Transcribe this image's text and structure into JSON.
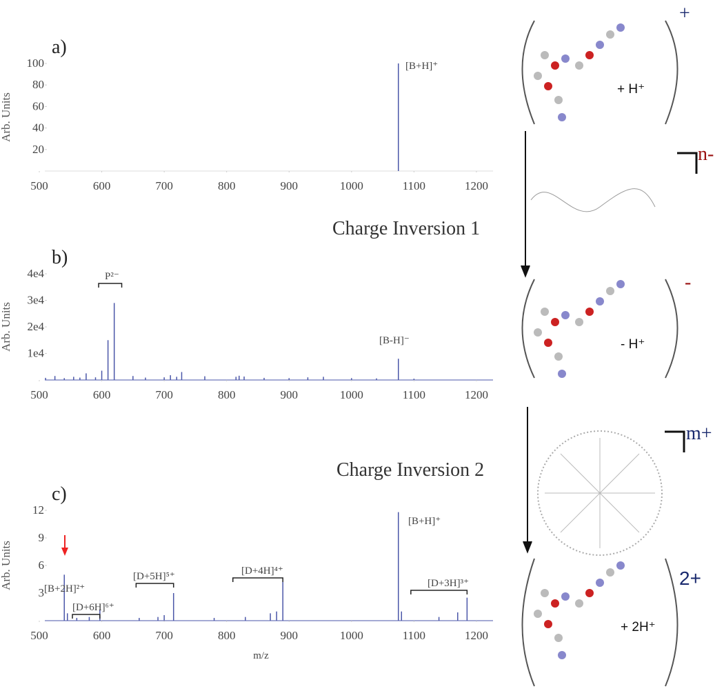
{
  "chart_data": [
    {
      "type": "stem",
      "label": "a)",
      "ylabel": "Arb. Units",
      "color": "#4a56a8",
      "x": [
        1075
      ],
      "values": [
        100
      ],
      "xlim": [
        500,
        1210
      ],
      "xticks": [
        500,
        600,
        700,
        800,
        900,
        1000,
        1100,
        1200
      ],
      "ylim": [
        0,
        100
      ],
      "yticks": [
        20,
        40,
        60,
        80,
        100
      ],
      "annotations": [
        "[B+H]⁺"
      ]
    },
    {
      "type": "stem",
      "label": "b)",
      "ylabel": "Arb. Units",
      "color": "#4a56a8",
      "x": [
        510,
        525,
        540,
        555,
        565,
        575,
        590,
        600,
        610,
        620,
        650,
        670,
        700,
        710,
        720,
        728,
        765,
        815,
        820,
        828,
        860,
        900,
        930,
        955,
        1000,
        1040,
        1075,
        1100
      ],
      "values": [
        800,
        1500,
        700,
        1200,
        900,
        2500,
        1000,
        3500,
        15000,
        29000,
        1500,
        900,
        1000,
        1800,
        1200,
        3000,
        1400,
        1200,
        1600,
        1300,
        800,
        700,
        1000,
        1200,
        700,
        600,
        8000,
        500
      ],
      "xlim": [
        500,
        1210
      ],
      "xticks": [
        500,
        600,
        700,
        800,
        900,
        1000,
        1100,
        1200
      ],
      "ylim": [
        0,
        40000
      ],
      "yticks": [
        {
          "value": 10000,
          "label": "1e4"
        },
        {
          "value": 20000,
          "label": "2e4"
        },
        {
          "value": 30000,
          "label": "3e4"
        },
        {
          "value": 40000,
          "label": "4e4"
        }
      ],
      "annotations": [
        "P²⁻",
        "[B-H]⁻"
      ]
    },
    {
      "type": "stem",
      "label": "c)",
      "ylabel": "Arb. Units",
      "xlabel": "m/z",
      "color": "#4a56a8",
      "x": [
        540,
        545,
        560,
        580,
        597,
        660,
        690,
        700,
        715,
        780,
        830,
        870,
        880,
        890,
        1075,
        1080,
        1140,
        1170,
        1185
      ],
      "values": [
        5,
        0.8,
        0.3,
        0.4,
        1.2,
        0.3,
        0.4,
        0.6,
        3,
        0.3,
        0.4,
        0.8,
        1,
        4.2,
        11.8,
        1,
        0.4,
        0.9,
        2.5
      ],
      "xlim": [
        500,
        1210
      ],
      "xticks": [
        500,
        600,
        700,
        800,
        900,
        1000,
        1100,
        1200
      ],
      "ylim": [
        0,
        12
      ],
      "yticks": [
        3,
        6,
        9,
        12
      ],
      "annotations": [
        "[B+2H]²⁺",
        "[D+6H]⁶⁺",
        "[D+5H]⁵⁺",
        "[D+4H]⁴⁺",
        "[B+H]⁺",
        "[D+3H]³⁺"
      ]
    }
  ],
  "scheme": {
    "charge1": "+",
    "adduct1": "+ H⁺",
    "dendrimer1_charge": "n-",
    "step1": "Charge Inversion 1",
    "charge2": "-",
    "adduct2": "- H⁺",
    "dendrimer2_charge": "m+",
    "step2": "Charge Inversion 2",
    "charge3": "2+",
    "adduct3": "+ 2H⁺"
  }
}
